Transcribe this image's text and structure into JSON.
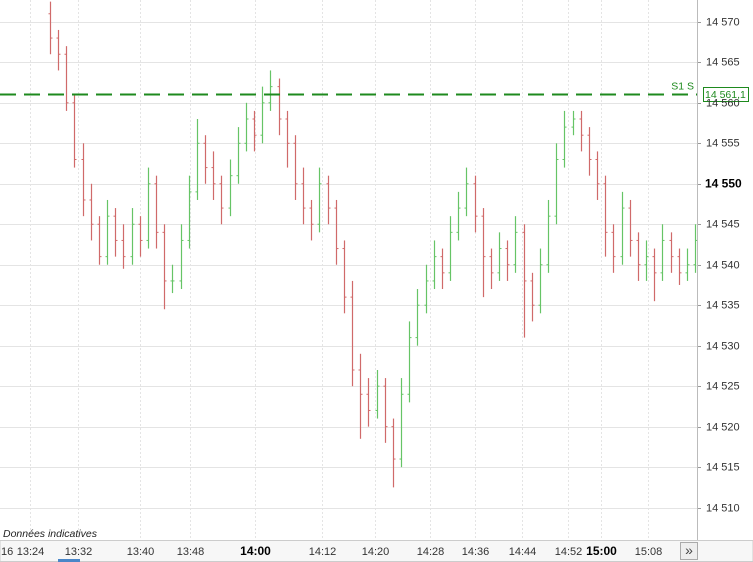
{
  "chart_data": {
    "type": "ohlc",
    "ylim": [
      14506,
      14572.7
    ],
    "yticks": [
      {
        "value": 14510,
        "label": "14 510"
      },
      {
        "value": 14515,
        "label": "14 515"
      },
      {
        "value": 14520,
        "label": "14 520"
      },
      {
        "value": 14525,
        "label": "14 525"
      },
      {
        "value": 14530,
        "label": "14 530"
      },
      {
        "value": 14535,
        "label": "14 535"
      },
      {
        "value": 14540,
        "label": "14 540"
      },
      {
        "value": 14545,
        "label": "14 545"
      },
      {
        "value": 14550,
        "label": "14 550"
      },
      {
        "value": 14555,
        "label": "14 555"
      },
      {
        "value": 14560,
        "label": "14 560"
      },
      {
        "value": 14565,
        "label": "14 565"
      },
      {
        "value": 14570,
        "label": "14 570"
      }
    ],
    "xticks": [
      "16",
      "13:24",
      "13:32",
      "13:40",
      "13:48",
      "14:00",
      "14:12",
      "14:20",
      "14:28",
      "14:36",
      "14:44",
      "14:52",
      "15:00",
      "15:08"
    ],
    "up_color": "#66c466",
    "down_color": "#d06a6a",
    "ohlc": [
      [
        14571,
        14572.5,
        14566,
        14568
      ],
      [
        14568,
        14569,
        14564,
        14566
      ],
      [
        14566,
        14567,
        14559,
        14560
      ],
      [
        14560,
        14561,
        14552,
        14553
      ],
      [
        14553,
        14555,
        14546,
        14548
      ],
      [
        14548,
        14550,
        14543,
        14545
      ],
      [
        14545,
        14546,
        14540,
        14541
      ],
      [
        14541,
        14548,
        14540,
        14546
      ],
      [
        14546,
        14547,
        14541,
        14543
      ],
      [
        14543,
        14545,
        14539.5,
        14541
      ],
      [
        14541,
        14547,
        14540,
        14545
      ],
      [
        14545,
        14546,
        14541,
        14543
      ],
      [
        14543,
        14552,
        14542,
        14550
      ],
      [
        14550,
        14551,
        14542,
        14544
      ],
      [
        14544,
        14545,
        14534.5,
        14538
      ],
      [
        14538,
        14540,
        14536.5,
        14538
      ],
      [
        14538,
        14545,
        14537,
        14543
      ],
      [
        14543,
        14551,
        14542,
        14549
      ],
      [
        14549,
        14558,
        14548,
        14555
      ],
      [
        14555,
        14556,
        14550,
        14552
      ],
      [
        14552,
        14554,
        14548,
        14550
      ],
      [
        14550,
        14551,
        14545,
        14547
      ],
      [
        14547,
        14553,
        14546,
        14551
      ],
      [
        14551,
        14557,
        14550,
        14555
      ],
      [
        14555,
        14560,
        14554,
        14558
      ],
      [
        14558,
        14559,
        14554,
        14556
      ],
      [
        14556,
        14562,
        14555,
        14560
      ],
      [
        14560,
        14564,
        14559,
        14562
      ],
      [
        14562,
        14563,
        14556,
        14558
      ],
      [
        14558,
        14559,
        14552,
        14555
      ],
      [
        14555,
        14556,
        14548,
        14550
      ],
      [
        14550,
        14552,
        14545,
        14547
      ],
      [
        14547,
        14548,
        14543,
        14545
      ],
      [
        14545,
        14552,
        14544,
        14550
      ],
      [
        14550,
        14551,
        14545,
        14547
      ],
      [
        14547,
        14548,
        14540,
        14542
      ],
      [
        14542,
        14543,
        14534,
        14536
      ],
      [
        14536,
        14538,
        14525,
        14527
      ],
      [
        14527,
        14529,
        14518.5,
        14524
      ],
      [
        14524,
        14526,
        14520,
        14522
      ],
      [
        14522,
        14527,
        14521,
        14525
      ],
      [
        14525,
        14526,
        14518,
        14520
      ],
      [
        14520,
        14521,
        14512.5,
        14516
      ],
      [
        14516,
        14526,
        14515,
        14524
      ],
      [
        14524,
        14533,
        14523,
        14531
      ],
      [
        14531,
        14537,
        14530,
        14535
      ],
      [
        14535,
        14540,
        14534,
        14538
      ],
      [
        14538,
        14543,
        14537,
        14541
      ],
      [
        14541,
        14542,
        14537,
        14539
      ],
      [
        14539,
        14546,
        14538,
        14544
      ],
      [
        14544,
        14549,
        14543,
        14547
      ],
      [
        14547,
        14552,
        14546,
        14550
      ],
      [
        14550,
        14551,
        14544,
        14546
      ],
      [
        14546,
        14547,
        14536,
        14541
      ],
      [
        14541,
        14542,
        14537,
        14539
      ],
      [
        14539,
        14544,
        14538,
        14542
      ],
      [
        14542,
        14543,
        14538,
        14540
      ],
      [
        14540,
        14546,
        14539,
        14544
      ],
      [
        14544,
        14545,
        14531,
        14538
      ],
      [
        14538,
        14539,
        14533,
        14535
      ],
      [
        14535,
        14542,
        14534,
        14540
      ],
      [
        14540,
        14548,
        14539,
        14546
      ],
      [
        14546,
        14555,
        14545,
        14553
      ],
      [
        14553,
        14559,
        14552,
        14557
      ],
      [
        14557,
        14559,
        14556,
        14558
      ],
      [
        14558,
        14559,
        14554,
        14556
      ],
      [
        14556,
        14557,
        14551,
        14553
      ],
      [
        14553,
        14554,
        14548,
        14550
      ],
      [
        14550,
        14551,
        14541,
        14544
      ],
      [
        14544,
        14545,
        14539,
        14541
      ],
      [
        14541,
        14549,
        14540,
        14547
      ],
      [
        14547,
        14548,
        14541,
        14543
      ],
      [
        14543,
        14544,
        14538,
        14540
      ],
      [
        14540,
        14543,
        14538,
        14541
      ],
      [
        14541,
        14542,
        14535.5,
        14539
      ],
      [
        14539,
        14545,
        14538,
        14543
      ],
      [
        14543,
        14544,
        14539,
        14541
      ],
      [
        14541,
        14542,
        14537.5,
        14539
      ],
      [
        14539,
        14542,
        14538,
        14540
      ],
      [
        14540,
        14545,
        14539,
        14543
      ]
    ],
    "support": {
      "label": "S1 S",
      "value": 14561.1,
      "value_label": "14 561,1",
      "color": "#1e8a1e"
    },
    "footnote": "Données indicatives"
  },
  "controls": {
    "scroll": "»"
  }
}
